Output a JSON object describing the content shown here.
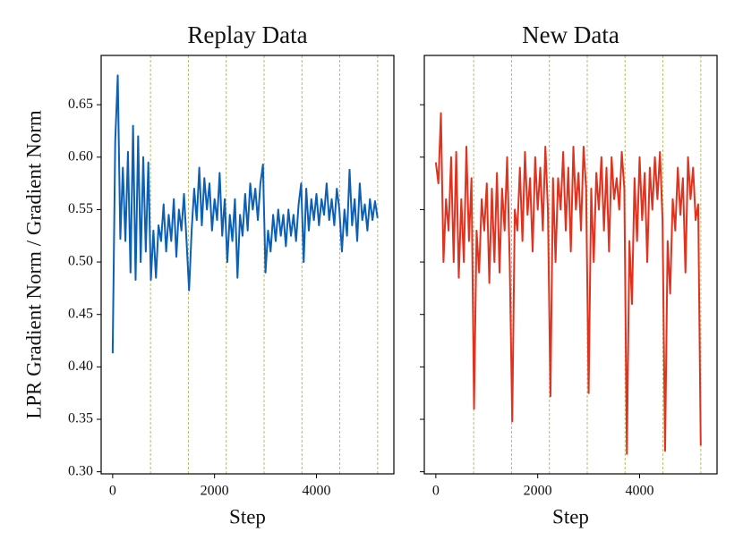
{
  "chart_data": [
    {
      "type": "line",
      "title": "Replay Data",
      "xlabel": "Step",
      "ylabel": "LPR Gradient Norm / Gradient Norm",
      "x": [
        0,
        50,
        100,
        150,
        200,
        250,
        300,
        350,
        400,
        450,
        500,
        550,
        600,
        650,
        700,
        750,
        800,
        850,
        900,
        950,
        1000,
        1050,
        1100,
        1150,
        1200,
        1250,
        1300,
        1350,
        1400,
        1450,
        1500,
        1550,
        1600,
        1650,
        1700,
        1750,
        1800,
        1850,
        1900,
        1950,
        2000,
        2050,
        2100,
        2150,
        2200,
        2250,
        2300,
        2350,
        2400,
        2450,
        2500,
        2550,
        2600,
        2650,
        2700,
        2750,
        2800,
        2850,
        2900,
        2950,
        3000,
        3050,
        3100,
        3150,
        3200,
        3250,
        3300,
        3350,
        3400,
        3450,
        3500,
        3550,
        3600,
        3650,
        3700,
        3750,
        3800,
        3850,
        3900,
        3950,
        4000,
        4050,
        4100,
        4150,
        4200,
        4250,
        4300,
        4350,
        4400,
        4450,
        4500,
        4550,
        4600,
        4650,
        4700,
        4750,
        4800,
        4850,
        4900,
        4950,
        5000,
        5050,
        5100,
        5150,
        5200
      ],
      "series": [
        {
          "color": "#0b5fb5",
          "values": [
            0.413,
            0.615,
            0.678,
            0.522,
            0.59,
            0.52,
            0.605,
            0.49,
            0.63,
            0.483,
            0.62,
            0.5,
            0.6,
            0.51,
            0.595,
            0.483,
            0.53,
            0.485,
            0.535,
            0.52,
            0.555,
            0.51,
            0.545,
            0.52,
            0.56,
            0.505,
            0.55,
            0.53,
            0.565,
            0.52,
            0.473,
            0.53,
            0.57,
            0.54,
            0.59,
            0.535,
            0.58,
            0.55,
            0.575,
            0.53,
            0.56,
            0.54,
            0.585,
            0.525,
            0.56,
            0.5,
            0.545,
            0.52,
            0.56,
            0.485,
            0.545,
            0.525,
            0.565,
            0.53,
            0.575,
            0.55,
            0.57,
            0.54,
            0.575,
            0.593,
            0.49,
            0.53,
            0.51,
            0.545,
            0.52,
            0.55,
            0.525,
            0.545,
            0.515,
            0.55,
            0.525,
            0.545,
            0.52,
            0.555,
            0.575,
            0.5,
            0.57,
            0.53,
            0.56,
            0.54,
            0.565,
            0.535,
            0.56,
            0.545,
            0.575,
            0.54,
            0.56,
            0.535,
            0.57,
            0.55,
            0.51,
            0.55,
            0.525,
            0.588,
            0.535,
            0.56,
            0.52,
            0.575,
            0.54,
            0.555,
            0.53,
            0.56,
            0.54,
            0.558,
            0.542
          ]
        }
      ],
      "vlines": [
        743,
        1486,
        2229,
        2972,
        3715,
        4458,
        5201
      ],
      "vline_color": "#b5bd68",
      "xlim": [
        -226,
        5520
      ],
      "ylim": [
        0.298,
        0.697
      ],
      "xticks": [
        0,
        2000,
        4000
      ],
      "yticks": [
        {
          "value": 0.3,
          "label": "0.30"
        },
        {
          "value": 0.35,
          "label": "0.35"
        },
        {
          "value": 0.4,
          "label": "0.40"
        },
        {
          "value": 0.45,
          "label": "0.45"
        },
        {
          "value": 0.5,
          "label": "0.50"
        },
        {
          "value": 0.55,
          "label": "0.55"
        },
        {
          "value": 0.6,
          "label": "0.60"
        },
        {
          "value": 0.65,
          "label": "0.65"
        }
      ]
    },
    {
      "type": "line",
      "title": "New Data",
      "xlabel": "Step",
      "x": [
        0,
        50,
        100,
        150,
        200,
        250,
        300,
        350,
        400,
        450,
        500,
        550,
        600,
        650,
        700,
        750,
        800,
        850,
        900,
        950,
        1000,
        1050,
        1100,
        1150,
        1200,
        1250,
        1300,
        1350,
        1400,
        1450,
        1500,
        1550,
        1600,
        1650,
        1700,
        1750,
        1800,
        1850,
        1900,
        1950,
        2000,
        2050,
        2100,
        2150,
        2200,
        2250,
        2300,
        2350,
        2400,
        2450,
        2500,
        2550,
        2600,
        2650,
        2700,
        2750,
        2800,
        2850,
        2900,
        2950,
        3000,
        3050,
        3100,
        3150,
        3200,
        3250,
        3300,
        3350,
        3400,
        3450,
        3500,
        3550,
        3600,
        3650,
        3700,
        3750,
        3800,
        3850,
        3900,
        3950,
        4000,
        4050,
        4100,
        4150,
        4200,
        4250,
        4300,
        4350,
        4400,
        4450,
        4500,
        4550,
        4600,
        4650,
        4700,
        4750,
        4800,
        4850,
        4900,
        4950,
        5000,
        5050,
        5100,
        5150,
        5200
      ],
      "series": [
        {
          "color": "#e0321f",
          "values": [
            0.595,
            0.575,
            0.642,
            0.5,
            0.56,
            0.53,
            0.6,
            0.5,
            0.605,
            0.485,
            0.56,
            0.5,
            0.61,
            0.52,
            0.58,
            0.36,
            0.53,
            0.49,
            0.56,
            0.53,
            0.575,
            0.48,
            0.57,
            0.5,
            0.585,
            0.49,
            0.57,
            0.53,
            0.6,
            0.5,
            0.348,
            0.55,
            0.53,
            0.59,
            0.52,
            0.605,
            0.545,
            0.58,
            0.51,
            0.6,
            0.55,
            0.59,
            0.53,
            0.61,
            0.55,
            0.372,
            0.58,
            0.5,
            0.58,
            0.55,
            0.605,
            0.53,
            0.59,
            0.51,
            0.61,
            0.55,
            0.585,
            0.53,
            0.61,
            0.57,
            0.375,
            0.57,
            0.5,
            0.585,
            0.55,
            0.6,
            0.53,
            0.59,
            0.51,
            0.6,
            0.56,
            0.58,
            0.55,
            0.605,
            0.57,
            0.317,
            0.52,
            0.46,
            0.58,
            0.52,
            0.6,
            0.54,
            0.585,
            0.5,
            0.59,
            0.55,
            0.6,
            0.56,
            0.605,
            0.54,
            0.32,
            0.52,
            0.47,
            0.56,
            0.53,
            0.59,
            0.545,
            0.58,
            0.49,
            0.6,
            0.56,
            0.59,
            0.54,
            0.555,
            0.325
          ]
        }
      ],
      "vlines": [
        743,
        1486,
        2229,
        2972,
        3715,
        4458,
        5201
      ],
      "vline_color": "#b5bd68",
      "xlim": [
        -226,
        5520
      ],
      "ylim": [
        0.298,
        0.697
      ],
      "xticks": [
        0,
        2000,
        4000
      ],
      "yticks": [
        0.3,
        0.35,
        0.4,
        0.45,
        0.5,
        0.55,
        0.6,
        0.65
      ]
    }
  ]
}
